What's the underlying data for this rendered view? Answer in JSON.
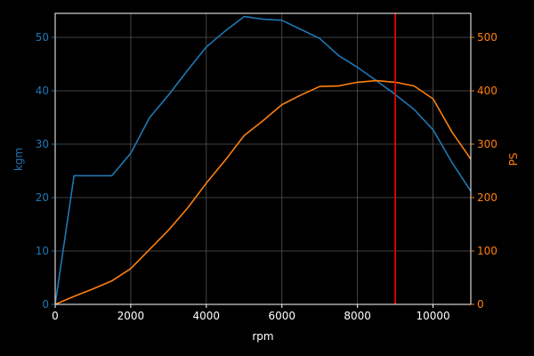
{
  "chart_data": {
    "type": "line",
    "title": "",
    "xlabel": "rpm",
    "ylabel_left": "kgm",
    "ylabel_right": "PS",
    "xlim": [
      0,
      11000
    ],
    "ylim_left": [
      0,
      54.5
    ],
    "ylim_right": [
      0,
      545
    ],
    "x_ticks": [
      0,
      2000,
      4000,
      6000,
      8000,
      10000
    ],
    "y_ticks_left": [
      0,
      10,
      20,
      30,
      40,
      50
    ],
    "y_ticks_right": [
      0,
      100,
      200,
      300,
      400,
      500
    ],
    "grid": true,
    "colors": {
      "background": "#000000",
      "axes": "#ffffff",
      "grid": "#555555",
      "torque": "#1f77b4",
      "power": "#ff7f0e",
      "redline": "#ff0000"
    },
    "series": [
      {
        "axis": "left",
        "color": "#1f77b4",
        "x": [
          0,
          500,
          1000,
          1500,
          2000,
          2500,
          3000,
          3500,
          4000,
          4500,
          5000,
          5500,
          6000,
          6500,
          7000,
          7500,
          8000,
          8500,
          9000,
          9500,
          10000,
          10500,
          11000
        ],
        "y": [
          0,
          24.1,
          24.1,
          24.1,
          28.3,
          35.0,
          39.2,
          43.8,
          48.2,
          51.2,
          53.9,
          53.4,
          53.2,
          51.5,
          49.8,
          46.6,
          44.4,
          41.9,
          39.3,
          36.5,
          32.7,
          26.6,
          21.2
        ]
      },
      {
        "axis": "right",
        "color": "#ff7f0e",
        "x": [
          0,
          500,
          1000,
          1500,
          2000,
          2500,
          3000,
          3500,
          4000,
          4500,
          5000,
          5500,
          6000,
          6500,
          7000,
          7500,
          8000,
          8500,
          9000,
          9500,
          10000,
          10500,
          11000
        ],
        "y": [
          0,
          15,
          29,
          44,
          67,
          103,
          139,
          180,
          227,
          270,
          316,
          344,
          374,
          392,
          408,
          409,
          416,
          419,
          416,
          409,
          385,
          323,
          272
        ]
      }
    ],
    "vline": {
      "x": 9000,
      "color": "#ff0000"
    }
  }
}
